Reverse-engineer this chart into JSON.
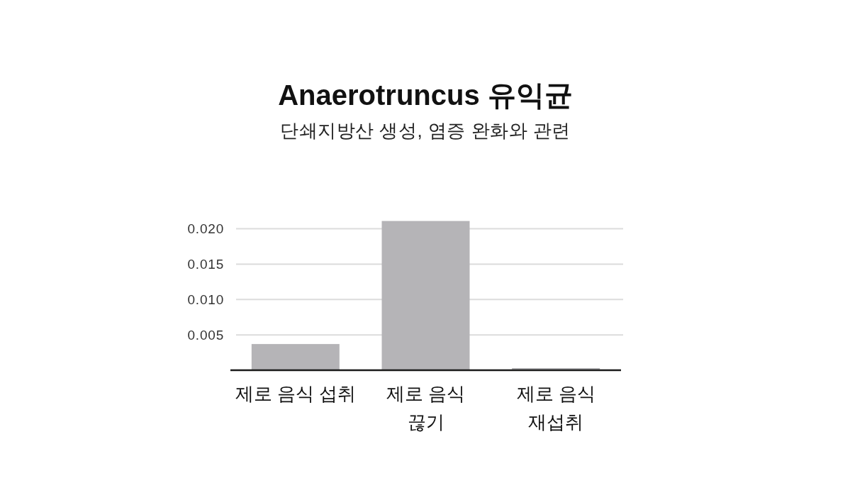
{
  "chart_data": {
    "type": "bar",
    "title": "Anaerotruncus 유익균",
    "subtitle": "단쇄지방산 생성, 염증 완화와 관련",
    "categories": [
      "제로 음식 섭취",
      "제로 음식\n끊기",
      "제로 음식\n재섭취"
    ],
    "values": [
      0.0037,
      0.0211,
      0.0003
    ],
    "color": "#b5b4b7",
    "ylim": [
      0,
      0.0211
    ],
    "yticks": [
      0.005,
      {
        "value": 0.01,
        "label": "0.010"
      },
      0.015,
      {
        "value": 0.02,
        "label": "0.020"
      }
    ],
    "grid": "y"
  }
}
